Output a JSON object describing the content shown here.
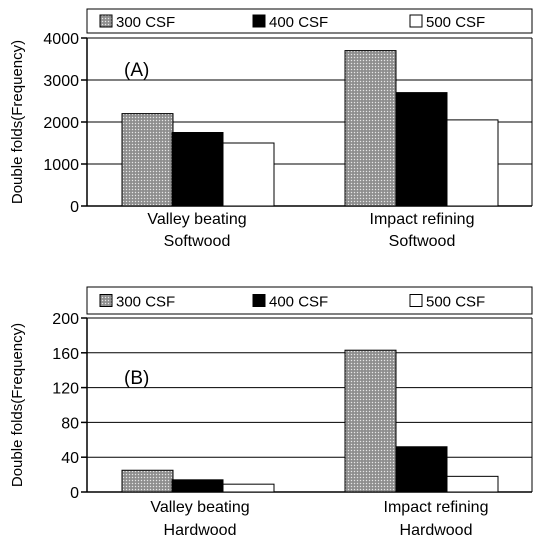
{
  "chart_data": [
    {
      "type": "bar",
      "panel_label": "(A)",
      "ylabel": "Double folds(Frequency)",
      "ylim": [
        0,
        4000
      ],
      "yticks": [
        0,
        1000,
        2000,
        3000,
        4000
      ],
      "grid": true,
      "legend_position": "top",
      "categories": [
        [
          "Valley beating",
          "Softwood"
        ],
        [
          "Impact refining",
          "Softwood"
        ]
      ],
      "series": [
        {
          "name": "300 CSF",
          "values": [
            2200,
            3700
          ]
        },
        {
          "name": "400 CSF",
          "values": [
            1750,
            2700
          ]
        },
        {
          "name": "500 CSF",
          "values": [
            1500,
            2050
          ]
        }
      ]
    },
    {
      "type": "bar",
      "panel_label": "(B)",
      "ylabel": "Double folds(Frequency)",
      "ylim": [
        0,
        200
      ],
      "yticks": [
        0,
        40,
        80,
        120,
        160,
        200
      ],
      "grid": true,
      "legend_position": "top",
      "categories": [
        [
          "Valley beating",
          "Hardwood"
        ],
        [
          "Impact refining",
          "Hardwood"
        ]
      ],
      "series": [
        {
          "name": "300 CSF",
          "values": [
            25,
            163
          ]
        },
        {
          "name": "400 CSF",
          "values": [
            14,
            52
          ]
        },
        {
          "name": "500 CSF",
          "values": [
            9,
            18
          ]
        }
      ]
    }
  ],
  "style": {
    "series_fills": [
      "#a9a9a9",
      "#000000",
      "#ffffff"
    ],
    "pattern": "dotted-gray"
  }
}
